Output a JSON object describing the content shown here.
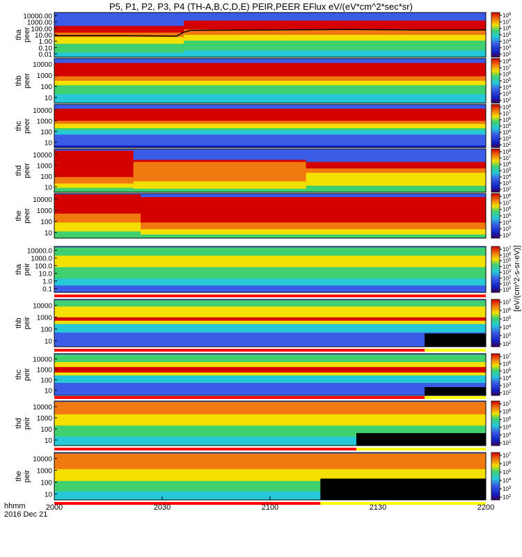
{
  "title": "P5, P1, P2, P3, P4 (TH-A,B,C,D,E) PEIR,PEER EFlux eV/(eV*cm^2*sec*sr)",
  "x_axis": {
    "label_line1": "hhmm",
    "label_line2": "2016 Dec 21",
    "ticks": [
      "2000",
      "2030",
      "2100",
      "2130",
      "2200"
    ]
  },
  "colorbar_unit_label": "[eV/(cm^2-s-sr-eV)]",
  "colors": {
    "hot": "#d40000",
    "warm": "#f07a10",
    "mid": "#f4e000",
    "green": "#40d070",
    "cyan": "#26c8d8",
    "low": "#3a5ce6",
    "blue": "#1020c0",
    "black": "#000000",
    "flag_red": "#ff0000",
    "flag_yellow": "#ffff00"
  },
  "chart_data": {
    "type": "heatmap",
    "x_range": [
      "2000",
      "2200"
    ],
    "panels": [
      {
        "id": "tha-peer",
        "ylabel": [
          "tha",
          "peer"
        ],
        "ylog": true,
        "yticks": [
          "10000.00",
          "1000.00",
          "100.00",
          "10.00",
          "1.00",
          "0.10",
          "0.01"
        ],
        "colorbar_ticks": [
          "10^8",
          "10^7",
          "10^6",
          "10^5",
          "10^4",
          "10^3",
          "10^2"
        ],
        "bands": [
          {
            "x": [
              0,
              36
            ],
            "color": "hot",
            "to": 0.7
          },
          {
            "x": [
              0,
              36
            ],
            "color": "warm",
            "to": 0.55
          },
          {
            "x": [
              0,
              36
            ],
            "color": "mid",
            "to": 0.45
          },
          {
            "x": [
              0,
              36
            ],
            "color": "green",
            "to": 0.3
          },
          {
            "x": [
              0,
              36
            ],
            "color": "cyan",
            "to": 0.1
          },
          {
            "x": [
              36,
              120
            ],
            "color": "hot",
            "to": 0.82
          },
          {
            "x": [
              36,
              120
            ],
            "color": "warm",
            "to": 0.62
          },
          {
            "x": [
              36,
              120
            ],
            "color": "mid",
            "to": 0.5
          },
          {
            "x": [
              36,
              120
            ],
            "color": "green",
            "to": 0.37
          },
          {
            "x": [
              36,
              120
            ],
            "color": "cyan",
            "to": 0.15
          }
        ],
        "line": [
          [
            0,
            0.48
          ],
          [
            20,
            0.48
          ],
          [
            34,
            0.47
          ],
          [
            36,
            0.56
          ],
          [
            38,
            0.6
          ],
          [
            60,
            0.61
          ],
          [
            80,
            0.62
          ],
          [
            100,
            0.61
          ],
          [
            120,
            0.61
          ]
        ]
      },
      {
        "id": "thb-peer",
        "ylabel": [
          "thb",
          "peer"
        ],
        "ylog": true,
        "yticks": [
          "10000",
          "1000",
          "100",
          "10"
        ],
        "colorbar_ticks": [
          "10^8",
          "10^7",
          "10^6",
          "10^5",
          "10^4",
          "10^3",
          "10^2"
        ],
        "bands": [
          {
            "x": [
              0,
              120
            ],
            "color": "hot",
            "to": 0.9
          },
          {
            "x": [
              0,
              120
            ],
            "color": "warm",
            "to": 0.6
          },
          {
            "x": [
              0,
              120
            ],
            "color": "mid",
            "to": 0.5
          },
          {
            "x": [
              0,
              120
            ],
            "color": "green",
            "to": 0.4
          },
          {
            "x": [
              0,
              120
            ],
            "color": "cyan",
            "to": 0.2
          }
        ]
      },
      {
        "id": "thc-peer",
        "ylabel": [
          "thc",
          "peer"
        ],
        "ylog": true,
        "yticks": [
          "10000",
          "1000",
          "100",
          "10"
        ],
        "colorbar_ticks": [
          "10^8",
          "10^7",
          "10^6",
          "10^5",
          "10^4",
          "10^3",
          "10^2"
        ],
        "bands": [
          {
            "x": [
              0,
              120
            ],
            "color": "hot",
            "to": 0.9
          },
          {
            "x": [
              0,
              120
            ],
            "color": "warm",
            "to": 0.62
          },
          {
            "x": [
              0,
              120
            ],
            "color": "mid",
            "to": 0.55
          },
          {
            "x": [
              0,
              120
            ],
            "color": "green",
            "to": 0.45
          },
          {
            "x": [
              0,
              120
            ],
            "color": "cyan",
            "to": 0.4
          },
          {
            "x": [
              0,
              120
            ],
            "color": "low",
            "to": 0.3
          },
          {
            "x": [
              0,
              120
            ],
            "color": "blue",
            "to": 0.05
          }
        ]
      },
      {
        "id": "thd-peer",
        "ylabel": [
          "thd",
          "peer"
        ],
        "ylog": true,
        "yticks": [
          "10000",
          "1000",
          "100",
          "10"
        ],
        "colorbar_ticks": [
          "10^8",
          "10^7",
          "10^6",
          "10^5",
          "10^4",
          "10^3",
          "10^2"
        ],
        "bands": [
          {
            "x": [
              0,
              22
            ],
            "color": "hot",
            "to": 0.96
          },
          {
            "x": [
              0,
              22
            ],
            "color": "warm",
            "to": 0.35
          },
          {
            "x": [
              0,
              22
            ],
            "color": "mid",
            "to": 0.2
          },
          {
            "x": [
              0,
              22
            ],
            "color": "green",
            "to": 0.1
          },
          {
            "x": [
              22,
              70
            ],
            "color": "hot",
            "to": 0.75
          },
          {
            "x": [
              22,
              70
            ],
            "color": "warm",
            "to": 0.7
          },
          {
            "x": [
              22,
              70
            ],
            "color": "mid",
            "to": 0.25
          },
          {
            "x": [
              22,
              70
            ],
            "color": "green",
            "to": 0.08
          },
          {
            "x": [
              70,
              120
            ],
            "color": "hot",
            "to": 0.7
          },
          {
            "x": [
              70,
              120
            ],
            "color": "warm",
            "to": 0.55
          },
          {
            "x": [
              70,
              120
            ],
            "color": "mid",
            "to": 0.45
          },
          {
            "x": [
              70,
              120
            ],
            "color": "green",
            "to": 0.15
          }
        ]
      },
      {
        "id": "the-peer",
        "ylabel": [
          "the",
          "peer"
        ],
        "ylog": true,
        "yticks": [
          "10000",
          "1000",
          "100",
          "10"
        ],
        "colorbar_ticks": [
          "10^8",
          "10^7",
          "10^6",
          "10^5",
          "10^4",
          "10^3",
          "10^2"
        ],
        "bands": [
          {
            "x": [
              0,
              24
            ],
            "color": "hot",
            "to": 0.98
          },
          {
            "x": [
              0,
              24
            ],
            "color": "warm",
            "to": 0.55
          },
          {
            "x": [
              0,
              24
            ],
            "color": "mid",
            "to": 0.35
          },
          {
            "x": [
              0,
              24
            ],
            "color": "green",
            "to": 0.15
          },
          {
            "x": [
              24,
              120
            ],
            "color": "hot",
            "to": 0.92
          },
          {
            "x": [
              24,
              120
            ],
            "color": "warm",
            "to": 0.35
          },
          {
            "x": [
              24,
              120
            ],
            "color": "mid",
            "to": 0.2
          },
          {
            "x": [
              24,
              120
            ],
            "color": "green",
            "to": 0.08
          }
        ]
      },
      {
        "id": "tha-peir",
        "ylabel": [
          "tha",
          "peir"
        ],
        "ylog": true,
        "yticks": [
          "10000.0",
          "1000.0",
          "100.0",
          "10.0",
          "1.0",
          "0.1"
        ],
        "colorbar_ticks": [
          "10^7",
          "10^6",
          "10^5",
          "10^4",
          "10^3",
          "10^2",
          "10^1",
          "10^0"
        ],
        "bands": [
          {
            "x": [
              0,
              120
            ],
            "color": "green",
            "to": 0.98
          },
          {
            "x": [
              0,
              120
            ],
            "color": "mid",
            "to": 0.8
          },
          {
            "x": [
              0,
              120
            ],
            "color": "green",
            "to": 0.55
          },
          {
            "x": [
              0,
              120
            ],
            "color": "cyan",
            "to": 0.3
          },
          {
            "x": [
              0,
              120
            ],
            "color": "low",
            "to": 0.15
          }
        ],
        "flag": {
          "red_to": 120,
          "yellow_to": 120
        }
      },
      {
        "id": "thb-peir",
        "ylabel": [
          "thb",
          "peir"
        ],
        "ylog": true,
        "yticks": [
          "10000",
          "1000",
          "100",
          "10"
        ],
        "colorbar_ticks": [
          "10^7",
          "10^6",
          "10^5",
          "10^4",
          "10^3",
          "10^2"
        ],
        "bands": [
          {
            "x": [
              0,
              120
            ],
            "color": "green",
            "to": 0.98
          },
          {
            "x": [
              0,
              120
            ],
            "color": "mid",
            "to": 0.85
          },
          {
            "x": [
              0,
              120
            ],
            "color": "hot",
            "to": 0.62
          },
          {
            "x": [
              0,
              120
            ],
            "color": "mid",
            "to": 0.55
          },
          {
            "x": [
              0,
              120
            ],
            "color": "cyan",
            "to": 0.48
          },
          {
            "x": [
              0,
              120
            ],
            "color": "low",
            "to": 0.3
          }
        ],
        "black_floor": {
          "x": [
            103,
            120
          ],
          "to": 0.28
        },
        "flag": {
          "red_to": 103,
          "yellow_to": 120
        }
      },
      {
        "id": "thc-peir",
        "ylabel": [
          "thc",
          "peir"
        ],
        "ylog": true,
        "yticks": [
          "10000",
          "1000",
          "100",
          "10"
        ],
        "colorbar_ticks": [
          "10^7",
          "10^6",
          "10^5",
          "10^4",
          "10^3",
          "10^2"
        ],
        "bands": [
          {
            "x": [
              0,
              120
            ],
            "color": "green",
            "to": 0.98
          },
          {
            "x": [
              0,
              120
            ],
            "color": "mid",
            "to": 0.8
          },
          {
            "x": [
              0,
              120
            ],
            "color": "hot",
            "to": 0.68
          },
          {
            "x": [
              0,
              120
            ],
            "color": "mid",
            "to": 0.55
          },
          {
            "x": [
              0,
              120
            ],
            "color": "cyan",
            "to": 0.48
          },
          {
            "x": [
              0,
              120
            ],
            "color": "low",
            "to": 0.3
          }
        ],
        "black_floor": {
          "x": [
            103,
            120
          ],
          "to": 0.2
        },
        "flag": {
          "red_to": 103,
          "yellow_to": 120
        }
      },
      {
        "id": "thd-peir",
        "ylabel": [
          "thd",
          "peir"
        ],
        "ylog": true,
        "yticks": [
          "10000",
          "1000",
          "100",
          "10"
        ],
        "colorbar_ticks": [
          "10^7",
          "10^6",
          "10^5",
          "10^4",
          "10^3",
          "10^2"
        ],
        "bands": [
          {
            "x": [
              0,
              120
            ],
            "color": "warm",
            "to": 0.98
          },
          {
            "x": [
              0,
              120
            ],
            "color": "mid",
            "to": 0.7
          },
          {
            "x": [
              0,
              120
            ],
            "color": "green",
            "to": 0.45
          },
          {
            "x": [
              0,
              120
            ],
            "color": "cyan",
            "to": 0.2
          }
        ],
        "black_floor": {
          "x": [
            84,
            120
          ],
          "to": 0.28
        },
        "flag": {
          "red_to": 84,
          "yellow_to": 120
        }
      },
      {
        "id": "the-peir",
        "ylabel": [
          "the",
          "peir"
        ],
        "ylog": true,
        "yticks": [
          "10000",
          "1000",
          "100",
          "10"
        ],
        "colorbar_ticks": [
          "10^7",
          "10^6",
          "10^5",
          "10^4",
          "10^3",
          "10^2"
        ],
        "bands": [
          {
            "x": [
              0,
              120
            ],
            "color": "warm",
            "to": 0.98
          },
          {
            "x": [
              0,
              120
            ],
            "color": "mid",
            "to": 0.65
          },
          {
            "x": [
              0,
              120
            ],
            "color": "green",
            "to": 0.4
          },
          {
            "x": [
              0,
              120
            ],
            "color": "cyan",
            "to": 0.18
          }
        ],
        "black_floor": {
          "x": [
            74,
            120
          ],
          "to": 0.45
        },
        "flag": {
          "red_to": 74,
          "yellow_to": 120
        }
      }
    ]
  }
}
